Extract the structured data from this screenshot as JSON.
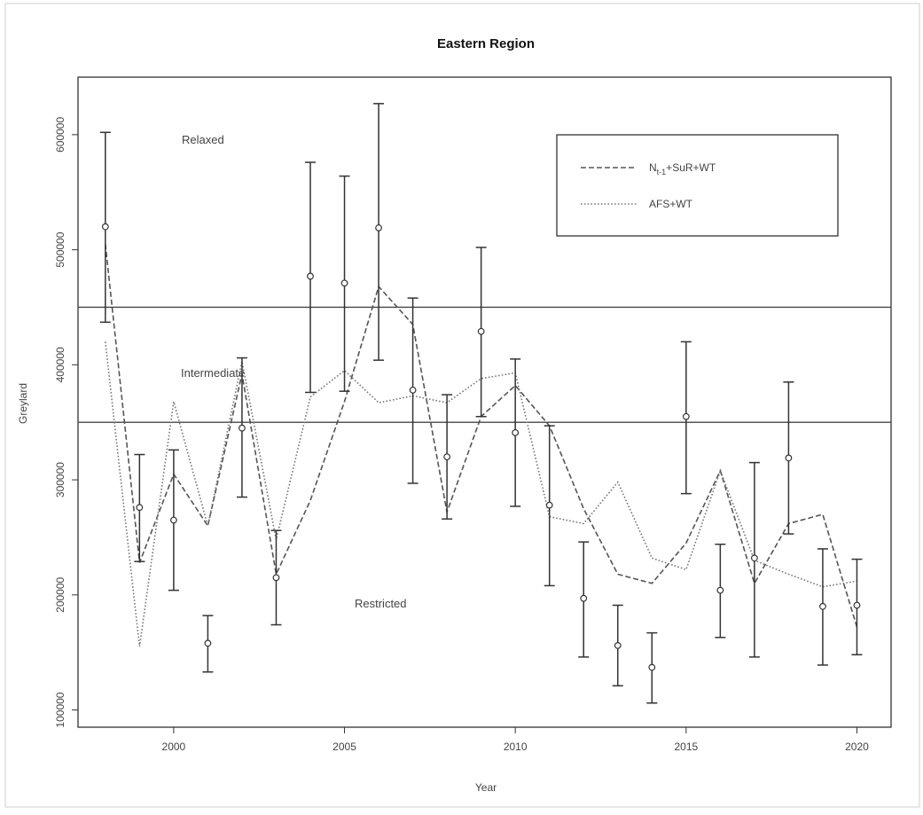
{
  "chart_data": {
    "type": "line",
    "title": "Eastern Region",
    "xlabel": "Year",
    "ylabel": "Greylard",
    "xlim": [
      1997.2,
      2021.0
    ],
    "ylim": [
      85000,
      650000
    ],
    "x_ticks": [
      "2000",
      "2005",
      "2010",
      "2015",
      "2020"
    ],
    "y_ticks": [
      "100000",
      "200000",
      "300000",
      "400000",
      "500000",
      "600000"
    ],
    "thresholds": [
      450000,
      350000
    ],
    "zone_labels": [
      "Relaxed",
      "Intermediate",
      "Restricted"
    ],
    "legend_position": "top-right",
    "grid": false,
    "series": [
      {
        "name": "N_{t-1}+SuR+WT",
        "legend_main": "N",
        "legend_sub": "t-1",
        "legend_rest": "+SuR+WT",
        "style": "dashed",
        "x": [
          1998,
          1999,
          2000,
          2001,
          2002,
          2003,
          2004,
          2005,
          2006,
          2007,
          2008,
          2009,
          2010,
          2011,
          2012,
          2013,
          2014,
          2015,
          2016,
          2017,
          2018,
          2019,
          2020
        ],
        "values": [
          505000,
          228000,
          305000,
          260000,
          392000,
          218000,
          282000,
          368000,
          468000,
          435000,
          272000,
          355000,
          382000,
          347000,
          275000,
          218000,
          210000,
          245000,
          308000,
          210000,
          262000,
          270000,
          172000
        ]
      },
      {
        "name": "AFS+WT",
        "style": "dotted",
        "x": [
          1998,
          1999,
          2000,
          2001,
          2002,
          2003,
          2004,
          2005,
          2006,
          2007,
          2008,
          2009,
          2010,
          2011,
          2012,
          2013,
          2014,
          2015,
          2016,
          2017,
          2018,
          2019,
          2020
        ],
        "values": [
          420000,
          155000,
          368000,
          260000,
          403000,
          248000,
          372000,
          395000,
          367000,
          373000,
          367000,
          388000,
          393000,
          268000,
          262000,
          298000,
          232000,
          222000,
          308000,
          230000,
          218000,
          207000,
          212000
        ]
      }
    ],
    "observations": {
      "x": [
        1998,
        1999,
        2000,
        2001,
        2002,
        2003,
        2004,
        2005,
        2006,
        2007,
        2008,
        2009,
        2010,
        2011,
        2012,
        2013,
        2014,
        2015,
        2016,
        2017,
        2018,
        2019,
        2020
      ],
      "value": [
        520000,
        276000,
        265000,
        158000,
        345000,
        215000,
        477000,
        471000,
        519000,
        378000,
        320000,
        429000,
        341000,
        278000,
        197000,
        156000,
        137000,
        355000,
        204000,
        232000,
        319000,
        190000,
        191000
      ],
      "lower": [
        437000,
        229000,
        204000,
        133000,
        285000,
        174000,
        376000,
        377000,
        404000,
        297000,
        266000,
        355000,
        277000,
        208000,
        146000,
        121000,
        106000,
        288000,
        163000,
        146000,
        253000,
        139000,
        148000
      ],
      "upper": [
        602000,
        322000,
        326000,
        182000,
        406000,
        256000,
        576000,
        564000,
        627000,
        458000,
        374000,
        502000,
        405000,
        347000,
        246000,
        191000,
        167000,
        420000,
        244000,
        315000,
        385000,
        240000,
        231000
      ]
    }
  }
}
